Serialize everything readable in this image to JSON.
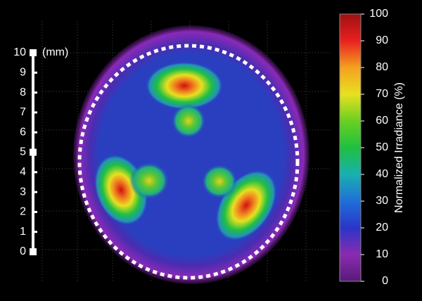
{
  "colorbar": {
    "label": "Normalized Irradiance (%)",
    "lim": [
      0,
      100
    ],
    "ticks": [
      0,
      10,
      20,
      30,
      40,
      50,
      60,
      70,
      80,
      90,
      100
    ]
  },
  "scale": {
    "unit": "(mm)",
    "lim": [
      0,
      10
    ],
    "ticks": [
      0,
      1,
      2,
      3,
      4,
      5,
      6,
      7,
      8,
      9,
      10
    ]
  }
}
